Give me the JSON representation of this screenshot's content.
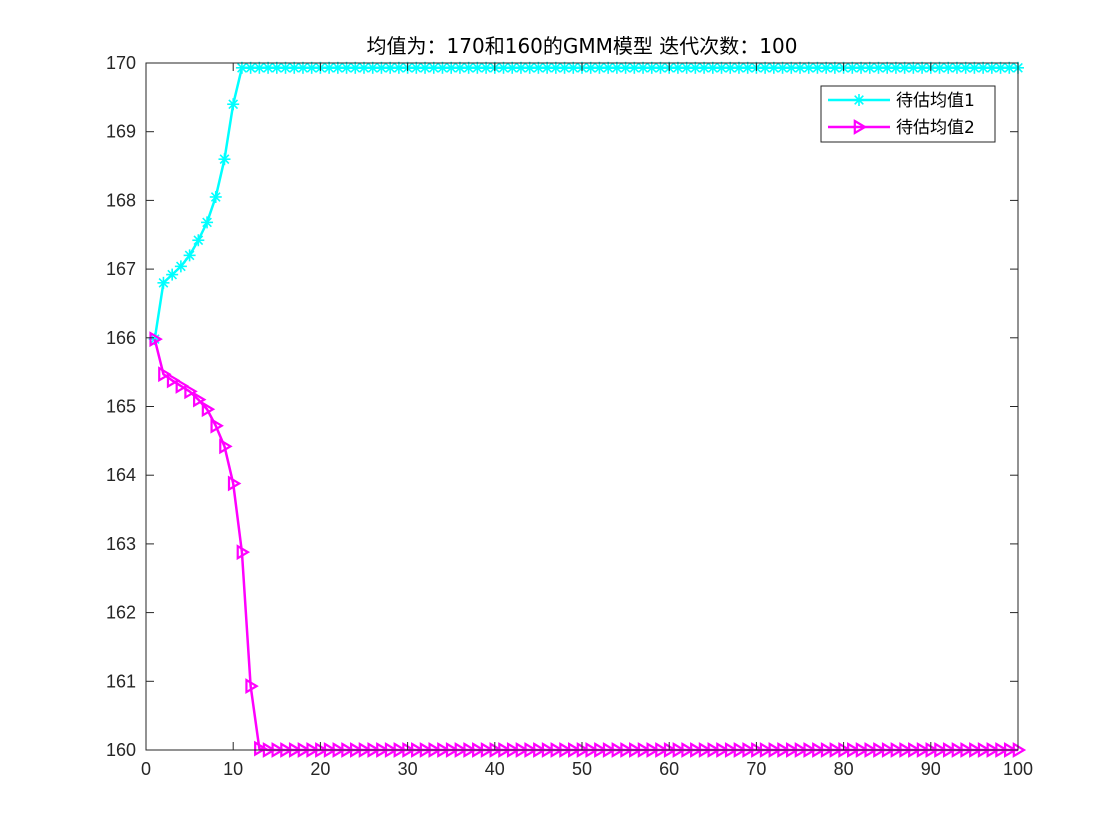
{
  "chart_data": {
    "type": "line",
    "title": "均值为：170和160的GMM模型 迭代次数：100",
    "xlim": [
      0,
      100
    ],
    "ylim": [
      160,
      170
    ],
    "xticks": [
      0,
      10,
      20,
      30,
      40,
      50,
      60,
      70,
      80,
      90,
      100
    ],
    "yticks": [
      160,
      161,
      162,
      163,
      164,
      165,
      166,
      167,
      168,
      169,
      170
    ],
    "grid": false,
    "box": true,
    "legend_position": "top-right",
    "series": [
      {
        "name": "待估均值1",
        "color": "#00ffff",
        "marker": "asterisk",
        "x_start": 1,
        "x_end": 100,
        "values": [
          165.98,
          166.8,
          166.92,
          167.04,
          167.2,
          167.42,
          167.68,
          168.05,
          168.6,
          169.4,
          169.93
        ],
        "steady_value": 169.93
      },
      {
        "name": "待估均值2",
        "color": "#ff00ff",
        "marker": "triangle-right",
        "x_start": 1,
        "x_end": 100,
        "values": [
          165.98,
          165.47,
          165.38,
          165.3,
          165.22,
          165.1,
          164.96,
          164.72,
          164.42,
          163.88,
          162.88,
          160.93,
          160.02
        ],
        "steady_value": 160.0
      }
    ]
  }
}
